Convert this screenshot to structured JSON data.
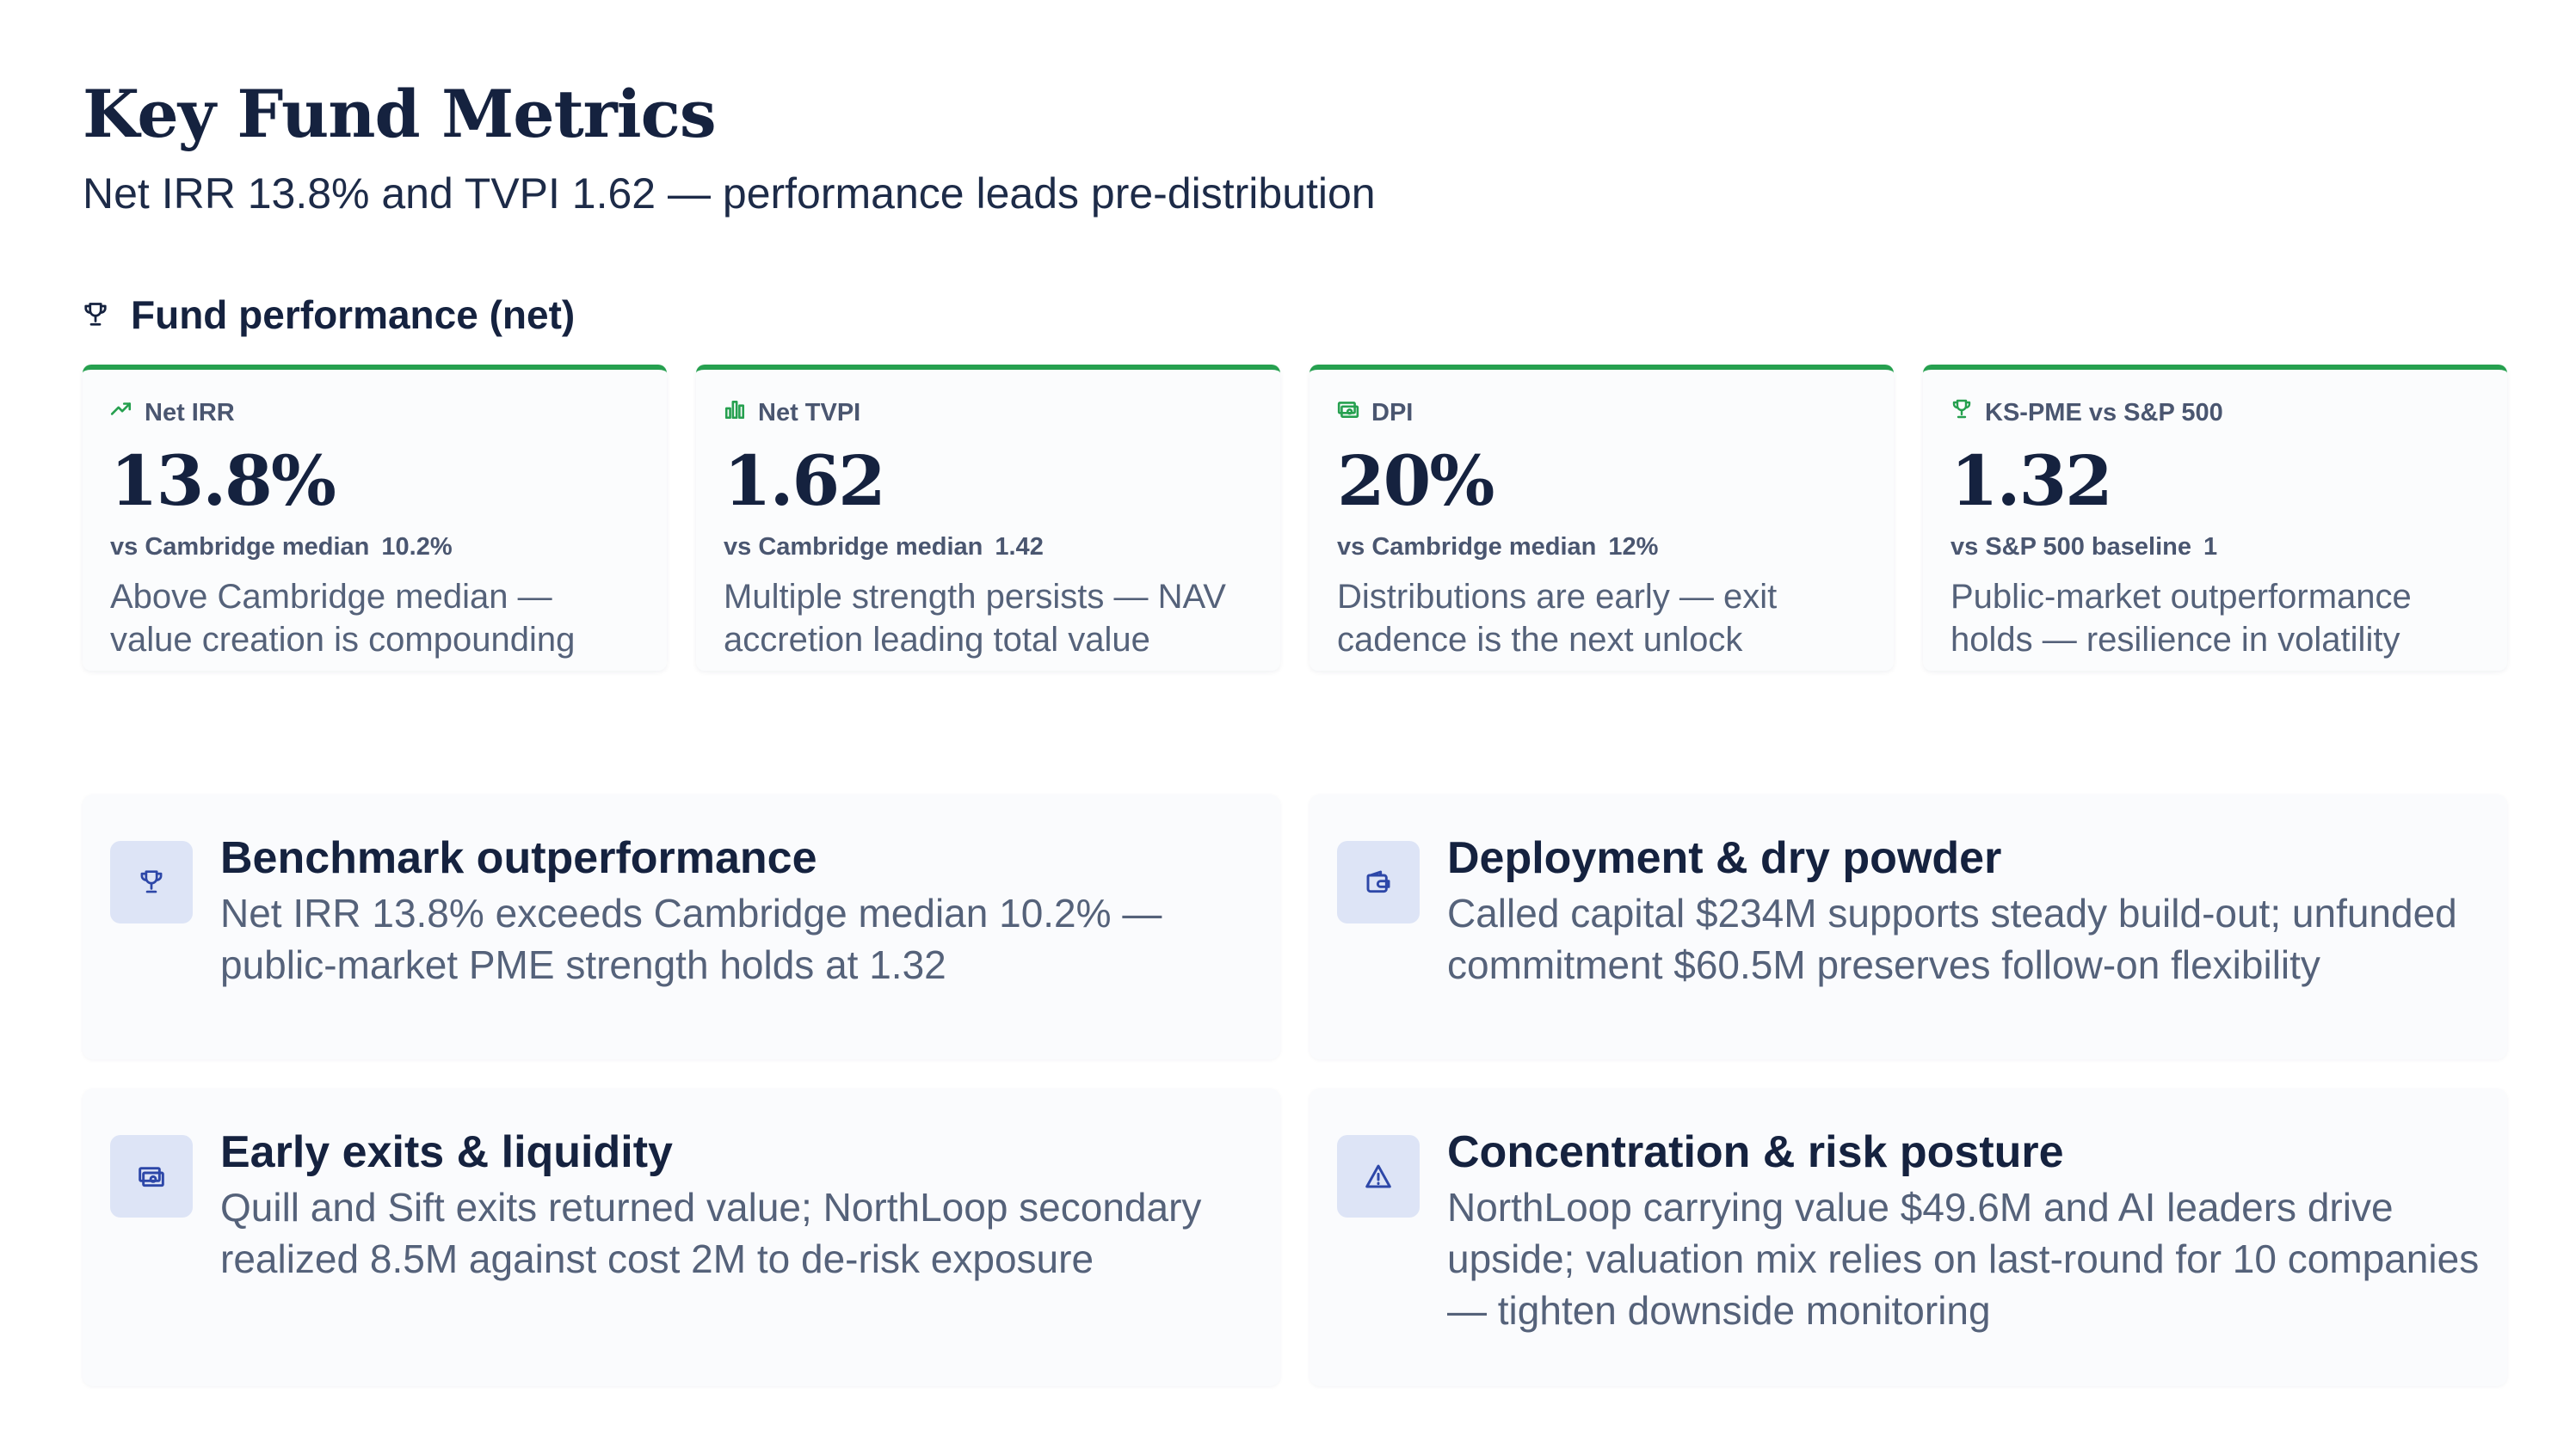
{
  "page": {
    "title": "Key Fund Metrics",
    "subtitle": "Net IRR 13.8% and TVPI 1.62 — performance leads pre-distribution"
  },
  "section": {
    "label": "Fund performance (net)",
    "icon": "trophy-icon"
  },
  "colors": {
    "accent": "#26a04f",
    "text_dark": "#15223f",
    "text_muted": "#55627a",
    "icon_bg": "#dde4f6",
    "icon_stroke": "#2d47a8"
  },
  "kpis": [
    {
      "icon": "trend-up-icon",
      "label": "Net IRR",
      "value": "13.8%",
      "bench_label": "vs Cambridge median",
      "bench_value": "10.2%",
      "desc": "Above Cambridge median — value creation is compounding"
    },
    {
      "icon": "bar-chart-icon",
      "label": "Net TVPI",
      "value": "1.62",
      "bench_label": "vs Cambridge median",
      "bench_value": "1.42",
      "desc": "Multiple strength persists — NAV accretion leading total value"
    },
    {
      "icon": "cash-icon",
      "label": "DPI",
      "value": "20%",
      "bench_label": "vs Cambridge median",
      "bench_value": "12%",
      "desc": "Distributions are early — exit cadence is the next unlock"
    },
    {
      "icon": "trophy-icon",
      "label": "KS-PME vs S&P 500",
      "value": "1.32",
      "bench_label": "vs S&P 500 baseline",
      "bench_value": "1",
      "desc": "Public-market outperformance holds — resilience in volatility"
    }
  ],
  "insights": [
    {
      "icon": "trophy-icon",
      "title": "Benchmark outperformance",
      "body": "Net IRR 13.8% exceeds Cambridge median 10.2% — public-market PME strength holds at 1.32"
    },
    {
      "icon": "wallet-icon",
      "title": "Deployment & dry powder",
      "body": "Called capital $234M supports steady build-out; unfunded commitment $60.5M preserves follow-on flexibility"
    },
    {
      "icon": "cash-icon",
      "title": "Early exits & liquidity",
      "body": "Quill and Sift exits returned value; NorthLoop secondary realized 8.5M against cost 2M to de-risk exposure"
    },
    {
      "icon": "warning-icon",
      "title": "Concentration & risk posture",
      "body": "NorthLoop carrying value $49.6M and AI leaders drive upside; valuation mix relies on last-round for 10 companies — tighten downside monitoring"
    }
  ]
}
